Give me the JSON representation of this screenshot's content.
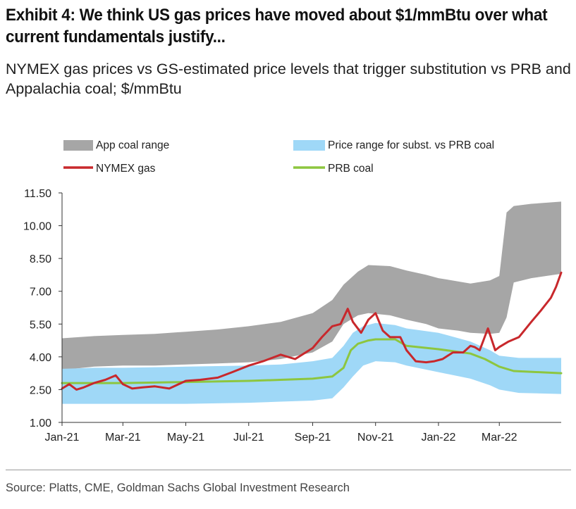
{
  "header": {
    "title": "Exhibit 4: We think US gas prices have moved about $1/mmBtu over what current fundamentals justify...",
    "subtitle": "NYMEX gas prices vs GS-estimated price levels that trigger substitution vs PRB and Appalachia coal; $/mmBtu"
  },
  "footer": {
    "source": "Source: Platts, CME, Goldman Sachs Global Investment Research"
  },
  "colors": {
    "app_coal_range": "#a6a6a6",
    "prb_subst_range": "#9fd8f7",
    "nymex_gas": "#c8282c",
    "prb_coal": "#8dc63f"
  },
  "chart_data": {
    "type": "area",
    "x_unit": "month",
    "x_range": [
      "2021-01-01",
      "2022-04-30"
    ],
    "ylim": [
      1.0,
      11.5
    ],
    "yticks": [
      "1.00",
      "2.50",
      "4.00",
      "5.50",
      "7.00",
      "8.50",
      "10.00",
      "11.50"
    ],
    "xticks": [
      {
        "date": "2021-01-01",
        "label": "Jan-21"
      },
      {
        "date": "2021-03-01",
        "label": "Mar-21"
      },
      {
        "date": "2021-05-01",
        "label": "May-21"
      },
      {
        "date": "2021-07-01",
        "label": "Jul-21"
      },
      {
        "date": "2021-09-01",
        "label": "Sep-21"
      },
      {
        "date": "2021-11-01",
        "label": "Nov-21"
      },
      {
        "date": "2022-01-01",
        "label": "Jan-22"
      },
      {
        "date": "2022-03-01",
        "label": "Mar-22"
      }
    ],
    "legend": [
      "App coal range",
      "Price range for subst. vs PRB coal",
      "NYMEX gas",
      "PRB coal"
    ],
    "series": [
      {
        "name": "App coal range",
        "kind": "band",
        "points": [
          [
            "2021-01-01",
            3.4,
            4.85
          ],
          [
            "2021-02-01",
            3.55,
            4.95
          ],
          [
            "2021-03-01",
            3.6,
            5.0
          ],
          [
            "2021-04-01",
            3.6,
            5.05
          ],
          [
            "2021-05-01",
            3.65,
            5.15
          ],
          [
            "2021-06-01",
            3.7,
            5.25
          ],
          [
            "2021-07-01",
            3.75,
            5.4
          ],
          [
            "2021-08-01",
            3.9,
            5.6
          ],
          [
            "2021-09-01",
            4.2,
            6.0
          ],
          [
            "2021-09-20",
            4.7,
            6.6
          ],
          [
            "2021-10-01",
            5.5,
            7.3
          ],
          [
            "2021-10-15",
            5.9,
            7.9
          ],
          [
            "2021-10-25",
            6.0,
            8.2
          ],
          [
            "2021-11-15",
            5.9,
            8.15
          ],
          [
            "2021-12-01",
            5.7,
            7.95
          ],
          [
            "2021-12-20",
            5.5,
            7.75
          ],
          [
            "2022-01-01",
            5.3,
            7.6
          ],
          [
            "2022-01-20",
            5.2,
            7.45
          ],
          [
            "2022-02-01",
            5.1,
            7.35
          ],
          [
            "2022-02-20",
            5.05,
            7.5
          ],
          [
            "2022-03-01",
            5.1,
            7.7
          ],
          [
            "2022-03-08",
            5.8,
            10.6
          ],
          [
            "2022-03-15",
            7.4,
            10.9
          ],
          [
            "2022-04-01",
            7.6,
            11.0
          ],
          [
            "2022-04-30",
            7.8,
            11.1
          ]
        ]
      },
      {
        "name": "Price range for subst. vs PRB coal",
        "kind": "band",
        "points": [
          [
            "2021-01-01",
            1.85,
            3.45
          ],
          [
            "2021-02-01",
            1.85,
            3.5
          ],
          [
            "2021-03-01",
            1.85,
            3.5
          ],
          [
            "2021-05-01",
            1.85,
            3.55
          ],
          [
            "2021-07-01",
            1.9,
            3.6
          ],
          [
            "2021-08-01",
            1.95,
            3.65
          ],
          [
            "2021-09-01",
            2.0,
            3.8
          ],
          [
            "2021-09-20",
            2.1,
            3.95
          ],
          [
            "2021-10-01",
            2.6,
            4.5
          ],
          [
            "2021-10-10",
            3.1,
            5.1
          ],
          [
            "2021-10-20",
            3.6,
            5.4
          ],
          [
            "2021-11-01",
            3.8,
            5.55
          ],
          [
            "2021-11-20",
            3.75,
            5.45
          ],
          [
            "2021-12-01",
            3.6,
            5.3
          ],
          [
            "2022-01-01",
            3.3,
            5.1
          ],
          [
            "2022-02-01",
            3.0,
            4.7
          ],
          [
            "2022-02-20",
            2.7,
            4.3
          ],
          [
            "2022-03-01",
            2.5,
            4.05
          ],
          [
            "2022-03-20",
            2.35,
            3.95
          ],
          [
            "2022-04-30",
            2.3,
            3.95
          ]
        ]
      },
      {
        "name": "PRB coal",
        "kind": "line",
        "points": [
          [
            "2021-01-01",
            2.8
          ],
          [
            "2021-03-01",
            2.8
          ],
          [
            "2021-05-01",
            2.85
          ],
          [
            "2021-07-01",
            2.9
          ],
          [
            "2021-08-01",
            2.95
          ],
          [
            "2021-09-01",
            3.0
          ],
          [
            "2021-09-20",
            3.1
          ],
          [
            "2021-10-01",
            3.5
          ],
          [
            "2021-10-08",
            4.3
          ],
          [
            "2021-10-15",
            4.6
          ],
          [
            "2021-10-25",
            4.75
          ],
          [
            "2021-11-01",
            4.8
          ],
          [
            "2021-11-20",
            4.8
          ],
          [
            "2021-12-01",
            4.5
          ],
          [
            "2022-01-01",
            4.35
          ],
          [
            "2022-02-01",
            4.15
          ],
          [
            "2022-02-15",
            3.9
          ],
          [
            "2022-03-01",
            3.55
          ],
          [
            "2022-03-15",
            3.35
          ],
          [
            "2022-04-30",
            3.25
          ]
        ]
      },
      {
        "name": "NYMEX gas",
        "kind": "line",
        "points": [
          [
            "2021-01-01",
            2.55
          ],
          [
            "2021-01-08",
            2.75
          ],
          [
            "2021-01-15",
            2.5
          ],
          [
            "2021-01-22",
            2.6
          ],
          [
            "2021-02-01",
            2.8
          ],
          [
            "2021-02-12",
            2.95
          ],
          [
            "2021-02-22",
            3.15
          ],
          [
            "2021-03-01",
            2.75
          ],
          [
            "2021-03-10",
            2.55
          ],
          [
            "2021-03-20",
            2.6
          ],
          [
            "2021-04-01",
            2.65
          ],
          [
            "2021-04-15",
            2.55
          ],
          [
            "2021-05-01",
            2.9
          ],
          [
            "2021-05-15",
            2.95
          ],
          [
            "2021-06-01",
            3.05
          ],
          [
            "2021-06-15",
            3.3
          ],
          [
            "2021-07-01",
            3.6
          ],
          [
            "2021-07-15",
            3.8
          ],
          [
            "2021-08-01",
            4.1
          ],
          [
            "2021-08-15",
            3.9
          ],
          [
            "2021-09-01",
            4.4
          ],
          [
            "2021-09-10",
            4.9
          ],
          [
            "2021-09-20",
            5.4
          ],
          [
            "2021-09-28",
            5.5
          ],
          [
            "2021-10-05",
            6.2
          ],
          [
            "2021-10-10",
            5.6
          ],
          [
            "2021-10-18",
            5.1
          ],
          [
            "2021-10-25",
            5.7
          ],
          [
            "2021-11-01",
            6.0
          ],
          [
            "2021-11-08",
            5.2
          ],
          [
            "2021-11-15",
            4.9
          ],
          [
            "2021-11-25",
            4.9
          ],
          [
            "2021-12-01",
            4.3
          ],
          [
            "2021-12-10",
            3.8
          ],
          [
            "2021-12-20",
            3.75
          ],
          [
            "2021-12-28",
            3.8
          ],
          [
            "2022-01-05",
            3.9
          ],
          [
            "2022-01-15",
            4.2
          ],
          [
            "2022-01-25",
            4.2
          ],
          [
            "2022-02-01",
            4.5
          ],
          [
            "2022-02-05",
            4.45
          ],
          [
            "2022-02-10",
            4.3
          ],
          [
            "2022-02-18",
            5.3
          ],
          [
            "2022-02-25",
            4.3
          ],
          [
            "2022-03-01",
            4.45
          ],
          [
            "2022-03-10",
            4.7
          ],
          [
            "2022-03-20",
            4.9
          ],
          [
            "2022-04-01",
            5.6
          ],
          [
            "2022-04-10",
            6.1
          ],
          [
            "2022-04-20",
            6.7
          ],
          [
            "2022-04-25",
            7.2
          ],
          [
            "2022-04-30",
            7.85
          ]
        ]
      }
    ]
  }
}
